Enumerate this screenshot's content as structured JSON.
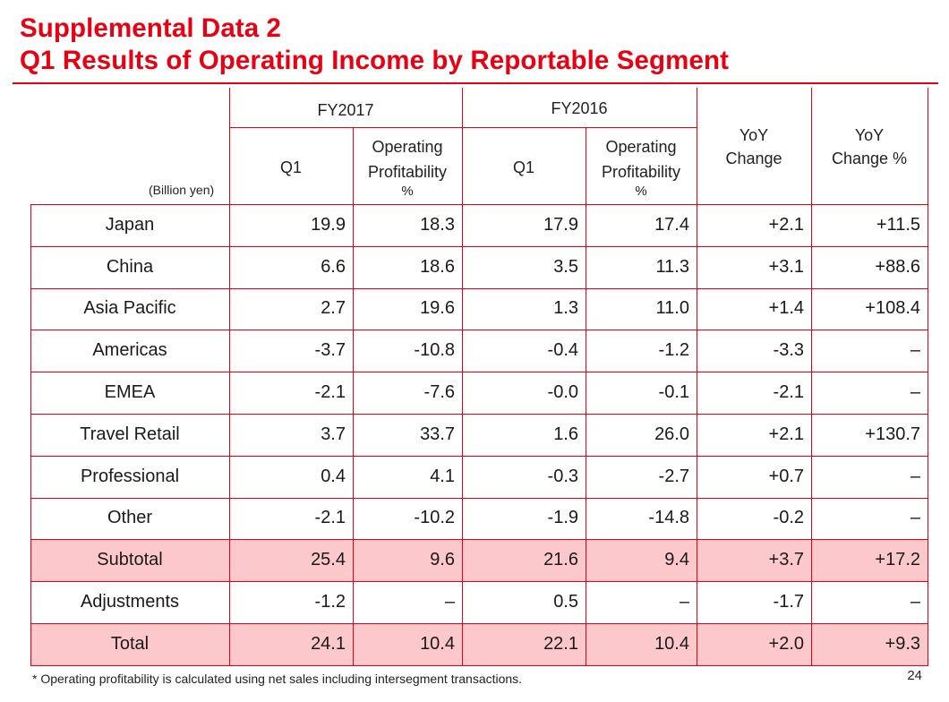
{
  "title": {
    "line1": "Supplemental Data 2",
    "line2": "Q1 Results of Operating Income by Reportable Segment"
  },
  "unit_label": "(Billion yen)",
  "headers": {
    "fy2017": "FY2017",
    "fy2016": "FY2016",
    "q1": "Q1",
    "op_line1": "Operating",
    "op_line2": "Profitability",
    "op_line3": "%",
    "yoy_line1": "YoY",
    "yoy_change": "Change",
    "yoy_change_pct": "Change %"
  },
  "rows": [
    {
      "segment": "Japan",
      "q1_2017": "19.9",
      "op_2017": "18.3",
      "q1_2016": "17.9",
      "op_2016": "17.4",
      "yoy": "+2.1",
      "yoy_pct": "+11.5",
      "highlight": false
    },
    {
      "segment": "China",
      "q1_2017": "6.6",
      "op_2017": "18.6",
      "q1_2016": "3.5",
      "op_2016": "11.3",
      "yoy": "+3.1",
      "yoy_pct": "+88.6",
      "highlight": false
    },
    {
      "segment": "Asia Pacific",
      "q1_2017": "2.7",
      "op_2017": "19.6",
      "q1_2016": "1.3",
      "op_2016": "11.0",
      "yoy": "+1.4",
      "yoy_pct": "+108.4",
      "highlight": false
    },
    {
      "segment": "Americas",
      "q1_2017": "-3.7",
      "op_2017": "-10.8",
      "q1_2016": "-0.4",
      "op_2016": "-1.2",
      "yoy": "-3.3",
      "yoy_pct": "–",
      "highlight": false
    },
    {
      "segment": "EMEA",
      "q1_2017": "-2.1",
      "op_2017": "-7.6",
      "q1_2016": "-0.0",
      "op_2016": "-0.1",
      "yoy": "-2.1",
      "yoy_pct": "–",
      "highlight": false
    },
    {
      "segment": "Travel Retail",
      "q1_2017": "3.7",
      "op_2017": "33.7",
      "q1_2016": "1.6",
      "op_2016": "26.0",
      "yoy": "+2.1",
      "yoy_pct": "+130.7",
      "highlight": false
    },
    {
      "segment": "Professional",
      "q1_2017": "0.4",
      "op_2017": "4.1",
      "q1_2016": "-0.3",
      "op_2016": "-2.7",
      "yoy": "+0.7",
      "yoy_pct": "–",
      "highlight": false
    },
    {
      "segment": "Other",
      "q1_2017": "-2.1",
      "op_2017": "-10.2",
      "q1_2016": "-1.9",
      "op_2016": "-14.8",
      "yoy": "-0.2",
      "yoy_pct": "–",
      "highlight": false
    },
    {
      "segment": "Subtotal",
      "q1_2017": "25.4",
      "op_2017": "9.6",
      "q1_2016": "21.6",
      "op_2016": "9.4",
      "yoy": "+3.7",
      "yoy_pct": "+17.2",
      "highlight": true
    },
    {
      "segment": "Adjustments",
      "q1_2017": "-1.2",
      "op_2017": "–",
      "q1_2016": "0.5",
      "op_2016": "–",
      "yoy": "-1.7",
      "yoy_pct": "–",
      "highlight": false
    },
    {
      "segment": "Total",
      "q1_2017": "24.1",
      "op_2017": "10.4",
      "q1_2016": "22.1",
      "op_2016": "10.4",
      "yoy": "+2.0",
      "yoy_pct": "+9.3",
      "highlight": true
    }
  ],
  "footnote": "* Operating profitability is calculated using net sales including intersegment transactions.",
  "page_number": "24",
  "colors": {
    "accent": "#e60012",
    "highlight_row": "#fcc8cc"
  }
}
